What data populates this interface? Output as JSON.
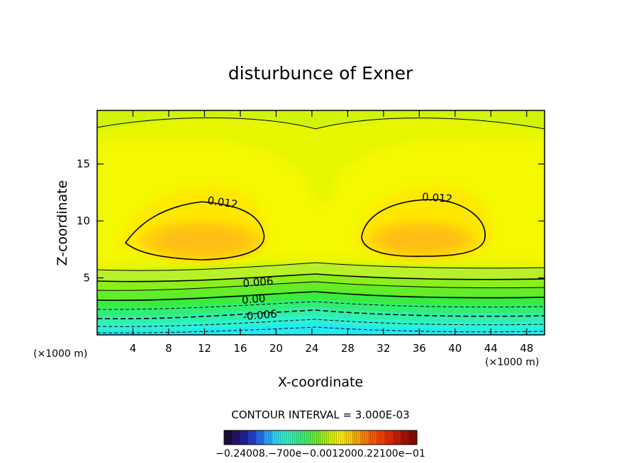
{
  "chart_data": {
    "type": "heatmap",
    "title": "disturbunce of Exner",
    "xlabel": "X-coordinate",
    "ylabel": "Z-coordinate",
    "x_unit": "(×1000 m)",
    "y_unit": "(×1000 m)",
    "xlim": [
      0,
      50
    ],
    "ylim": [
      0,
      19.7
    ],
    "x_ticks": [
      4,
      8,
      12,
      16,
      20,
      24,
      28,
      32,
      36,
      40,
      44,
      48
    ],
    "y_ticks": [
      5,
      10,
      15
    ],
    "contour_interval_text": "CONTOUR INTERVAL = 3.000E-03",
    "contour_interval": 0.003,
    "contour_labels": [
      {
        "text": "0.012",
        "x": 14.0,
        "z": 11.5
      },
      {
        "text": "0.012",
        "x": 38.0,
        "z": 11.9
      },
      {
        "text": "0.006",
        "x": 18.0,
        "z": 4.5
      },
      {
        "text": "0.00",
        "x": 17.5,
        "z": 3.0
      },
      {
        "text": "-0.006",
        "x": 18.2,
        "z": 1.6
      }
    ],
    "features": {
      "maxima": [
        {
          "x": 12,
          "z": 8.5,
          "value": 0.0135
        },
        {
          "x": 36,
          "z": 8.5,
          "value": 0.0135
        }
      ],
      "minimum_region": {
        "z": 0.3,
        "value": -0.012
      }
    },
    "colorbar": {
      "range": [
        -0.024,
        0.024
      ],
      "tick_labels_text": "−0.24008.−700e−0.0012000.22100e−01",
      "colors": [
        "#1a0a3a",
        "#2a0e6a",
        "#1e1e9a",
        "#1e3ec8",
        "#1f6ef0",
        "#21a8ff",
        "#28d8f4",
        "#2ef0d0",
        "#2ff2a8",
        "#36f080",
        "#48f058",
        "#6ef028",
        "#a0f010",
        "#d8f400",
        "#fff200",
        "#ffd000",
        "#ffa800",
        "#ff7e00",
        "#ff5a00",
        "#ff3c00",
        "#e82800",
        "#c81a00",
        "#a81000",
        "#8a0800"
      ]
    }
  }
}
